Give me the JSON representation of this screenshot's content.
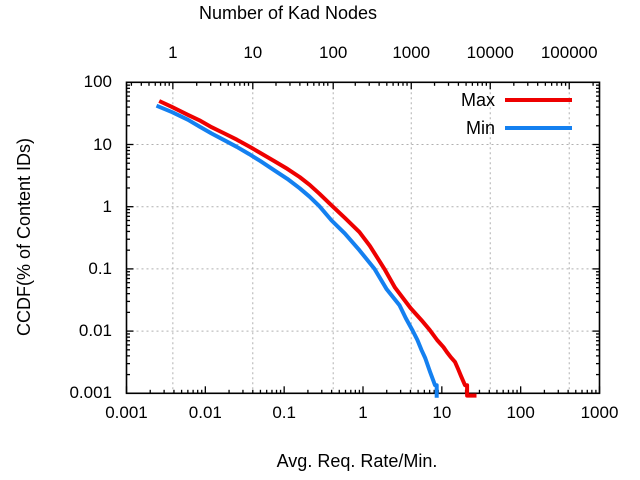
{
  "window": {
    "background": "#ffffff"
  },
  "chart_data": {
    "type": "line",
    "title": "",
    "x2label": "Number of Kad Nodes",
    "xlabel": "Avg. Req. Rate/Min.",
    "ylabel": "CCDF(% of Content IDs)",
    "xscale": "log",
    "yscale": "log",
    "xlim": [
      0.001,
      1000
    ],
    "ylim": [
      0.001,
      100
    ],
    "grid": true,
    "grid_color": "#b0b0b0",
    "frame_color": "#000000",
    "x_ticks": {
      "values": [
        0.001,
        0.01,
        0.1,
        1,
        10,
        100,
        1000
      ],
      "labels": [
        "0.001",
        "0.01",
        "0.1",
        "1",
        "10",
        "100",
        "1000"
      ]
    },
    "x2_ticks": {
      "values": [
        1,
        10,
        100,
        1000,
        10000,
        100000
      ],
      "labels": [
        "1",
        "10",
        "100",
        "1000",
        "10000",
        "100000"
      ],
      "fractions": [
        0.098,
        0.267,
        0.437,
        0.602,
        0.769,
        0.936
      ]
    },
    "y_ticks": {
      "values": [
        100,
        10,
        1,
        0.1,
        0.01,
        0.001
      ],
      "labels": [
        "100",
        "10",
        "1",
        "0.1",
        "0.01",
        "0.001"
      ]
    },
    "legend": {
      "position": "top-right",
      "entries": [
        {
          "label": "Max",
          "color": "#ee0000"
        },
        {
          "label": "Min",
          "color": "#1480f0"
        }
      ]
    },
    "series": [
      {
        "name": "Max",
        "color": "#ee0000",
        "points": [
          [
            0.0026,
            50
          ],
          [
            0.0038,
            40
          ],
          [
            0.006,
            30
          ],
          [
            0.0084,
            24.5
          ],
          [
            0.012,
            19
          ],
          [
            0.0175,
            15
          ],
          [
            0.025,
            12
          ],
          [
            0.036,
            9.3
          ],
          [
            0.05,
            7.3
          ],
          [
            0.075,
            5.4
          ],
          [
            0.11,
            4.05
          ],
          [
            0.157,
            3.0
          ],
          [
            0.21,
            2.25
          ],
          [
            0.28,
            1.62
          ],
          [
            0.4,
            1.05
          ],
          [
            0.59,
            0.66
          ],
          [
            0.9,
            0.39
          ],
          [
            1.22,
            0.235
          ],
          [
            1.87,
            0.1
          ],
          [
            2.55,
            0.05
          ],
          [
            4.0,
            0.0235
          ],
          [
            5.5,
            0.015
          ],
          [
            7.0,
            0.0105
          ],
          [
            8.7,
            0.0072
          ],
          [
            10.5,
            0.0055
          ],
          [
            11.6,
            0.0046
          ],
          [
            13,
            0.0038
          ],
          [
            14.7,
            0.0032
          ],
          [
            16,
            0.0025
          ],
          [
            17.5,
            0.0019
          ],
          [
            19.7,
            0.00135
          ],
          [
            20.9,
            0.00135
          ],
          [
            20.9,
            0.00092
          ],
          [
            27.5,
            0.00092
          ]
        ]
      },
      {
        "name": "Min",
        "color": "#1480f0",
        "points": [
          [
            0.0024,
            42
          ],
          [
            0.0038,
            33
          ],
          [
            0.006,
            25
          ],
          [
            0.0084,
            19.5
          ],
          [
            0.012,
            15
          ],
          [
            0.0175,
            11.7
          ],
          [
            0.025,
            9.2
          ],
          [
            0.036,
            7.0
          ],
          [
            0.05,
            5.4
          ],
          [
            0.075,
            3.85
          ],
          [
            0.11,
            2.8
          ],
          [
            0.157,
            1.98
          ],
          [
            0.21,
            1.45
          ],
          [
            0.28,
            1.02
          ],
          [
            0.4,
            0.6
          ],
          [
            0.59,
            0.37
          ],
          [
            0.9,
            0.2
          ],
          [
            1.4,
            0.1
          ],
          [
            2.0,
            0.047
          ],
          [
            2.9,
            0.026
          ],
          [
            3.5,
            0.016
          ],
          [
            4.3,
            0.01
          ],
          [
            4.9,
            0.0072
          ],
          [
            5.5,
            0.005
          ],
          [
            6.15,
            0.0037
          ],
          [
            7.1,
            0.0022
          ],
          [
            7.8,
            0.0016
          ],
          [
            8.2,
            0.00135
          ],
          [
            8.6,
            0.00135
          ],
          [
            8.6,
            0.00085
          ]
        ]
      }
    ]
  }
}
